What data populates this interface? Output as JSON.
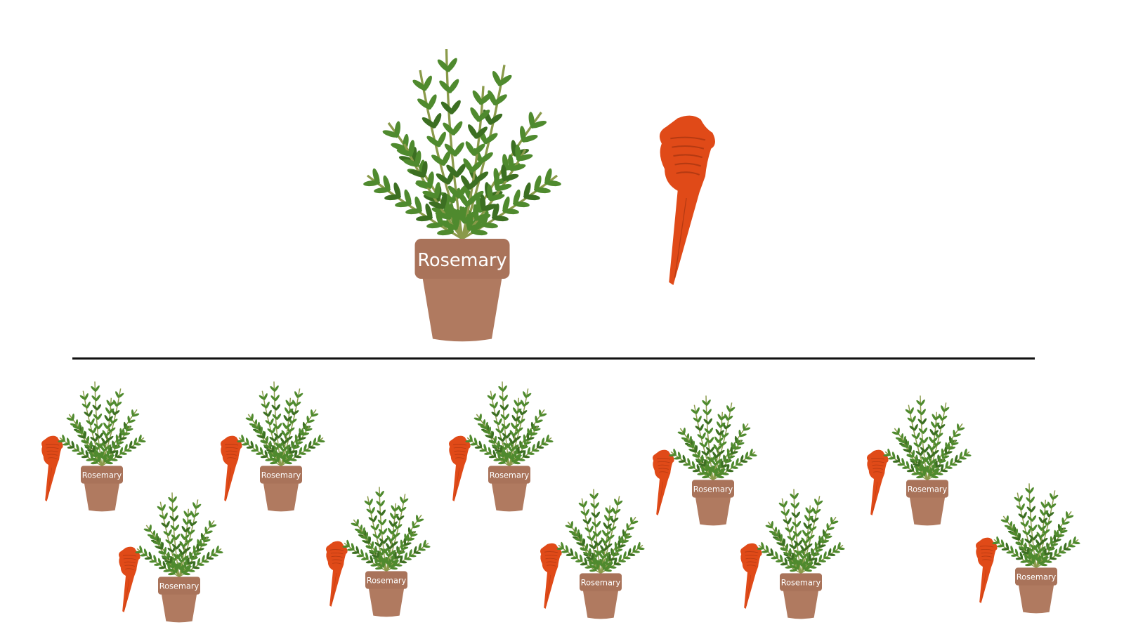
{
  "plant_label": "Rosemary",
  "colors": {
    "pot": "#b07a60",
    "pot_rim": "#a9735a",
    "pot_label": "#ffffff",
    "leaf": "#4f8a2e",
    "leaf_dark": "#3c6f22",
    "stem": "#8a9a4a",
    "spike": "#e04a18",
    "spike_dark": "#b53a12",
    "divider": "#111111"
  },
  "icons": {
    "plant": "potted-rosemary-icon",
    "spike": "watering-spike-icon"
  },
  "top_group": {
    "plant_count": 1,
    "spike_count": 1
  },
  "bottom_group": {
    "pair_count": 10
  }
}
